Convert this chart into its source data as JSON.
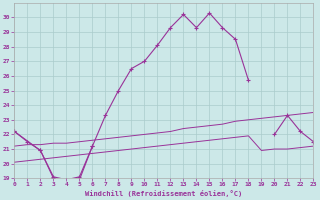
{
  "bg_color": "#cce8e8",
  "grid_color": "#aacccc",
  "line_color": "#993399",
  "xlabel": "Windchill (Refroidissement éolien,°C)",
  "xlim": [
    0,
    23
  ],
  "ylim": [
    19,
    31
  ],
  "yticks": [
    19,
    20,
    21,
    22,
    23,
    24,
    25,
    26,
    27,
    28,
    29,
    30
  ],
  "xticks": [
    0,
    1,
    2,
    3,
    4,
    5,
    6,
    7,
    8,
    9,
    10,
    11,
    12,
    13,
    14,
    15,
    16,
    17,
    18,
    19,
    20,
    21,
    22,
    23
  ],
  "curve1_x": [
    0,
    1,
    2,
    3,
    4,
    5,
    6,
    7,
    8,
    9,
    10,
    11,
    12,
    13,
    14,
    15,
    16,
    17,
    18
  ],
  "curve1_y": [
    22.2,
    21.5,
    20.9,
    19.0,
    18.9,
    18.9,
    21.2,
    23.3,
    25.0,
    26.5,
    27.0,
    28.1,
    29.3,
    30.2,
    29.3,
    30.3,
    29.3,
    28.5,
    25.7
  ],
  "curve2_x": [
    0,
    2,
    3,
    4,
    5,
    6,
    20,
    21,
    22,
    23
  ],
  "curve2_y": [
    22.2,
    20.9,
    19.1,
    18.9,
    19.1,
    21.2,
    22.0,
    23.3,
    22.2,
    21.5
  ],
  "curve2_break": 6,
  "line3_x": [
    0,
    1,
    2,
    3,
    4,
    5,
    6,
    7,
    8,
    9,
    10,
    11,
    12,
    13,
    14,
    15,
    16,
    17,
    18,
    19,
    20,
    21,
    22,
    23
  ],
  "line3_y": [
    21.2,
    21.3,
    21.3,
    21.4,
    21.4,
    21.5,
    21.6,
    21.7,
    21.8,
    21.9,
    22.0,
    22.1,
    22.2,
    22.4,
    22.5,
    22.6,
    22.7,
    22.9,
    23.0,
    23.1,
    23.2,
    23.3,
    23.4,
    23.5
  ],
  "line4_x": [
    0,
    1,
    2,
    3,
    4,
    5,
    6,
    7,
    8,
    9,
    10,
    11,
    12,
    13,
    14,
    15,
    16,
    17,
    18,
    19,
    20,
    21,
    22,
    23
  ],
  "line4_y": [
    20.1,
    20.2,
    20.3,
    20.4,
    20.5,
    20.6,
    20.7,
    20.8,
    20.9,
    21.0,
    21.1,
    21.2,
    21.3,
    21.4,
    21.5,
    21.6,
    21.7,
    21.8,
    21.9,
    20.9,
    21.0,
    21.0,
    21.1,
    21.2
  ]
}
